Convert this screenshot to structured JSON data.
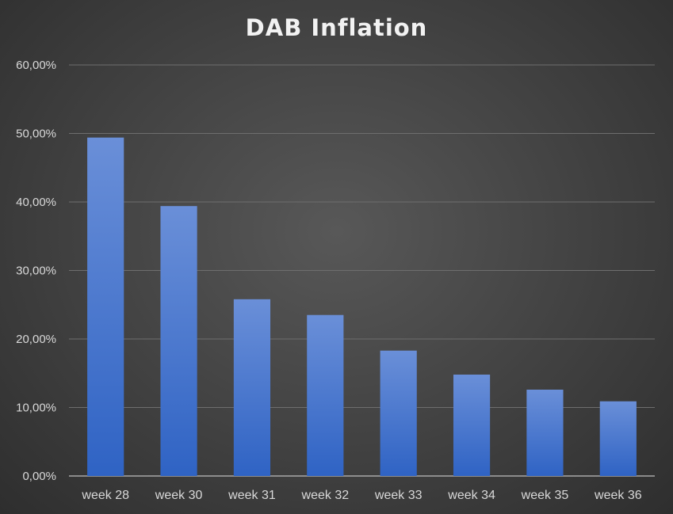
{
  "chart_data": {
    "type": "bar",
    "title": "DAB Inflation",
    "xlabel": "",
    "ylabel": "",
    "categories": [
      "week 28",
      "week 30",
      "week 31",
      "week 32",
      "week 33",
      "week 34",
      "week 35",
      "week 36"
    ],
    "series": [
      {
        "values": [
          49.4,
          39.4,
          25.8,
          23.5,
          18.3,
          14.8,
          12.6,
          10.9
        ]
      }
    ],
    "ylim": [
      0,
      60
    ],
    "yticks": [
      0,
      10,
      20,
      30,
      40,
      50,
      60
    ],
    "ytick_labels": [
      "0,00%",
      "10,00%",
      "20,00%",
      "30,00%",
      "40,00%",
      "50,00%",
      "60,00%"
    ],
    "grid": true,
    "legend": "none",
    "colors": {
      "bar_top": "#6a8fd8",
      "bar_bottom": "#2f63c4",
      "gridline": "#6e6e6e",
      "text": "#d9d9d9",
      "title": "#f2f2f2"
    }
  }
}
